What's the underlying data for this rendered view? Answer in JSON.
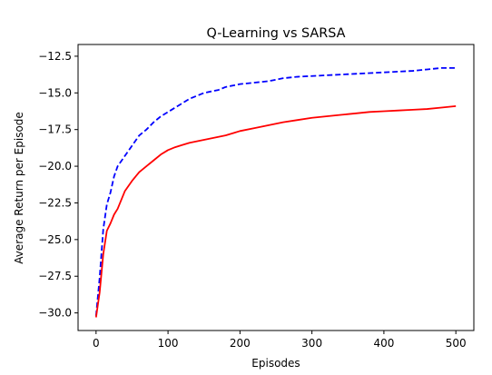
{
  "chart_data": {
    "type": "line",
    "title": "Q-Learning vs SARSA",
    "xlabel": "Episodes",
    "ylabel": "Average Return per Episode",
    "xlim": [
      -25,
      525
    ],
    "ylim": [
      -31.2,
      -11.7
    ],
    "x_ticks": [
      0,
      100,
      200,
      300,
      400,
      500
    ],
    "y_ticks": [
      -30.0,
      -27.5,
      -25.0,
      -22.5,
      -20.0,
      -17.5,
      -15.0,
      -12.5
    ],
    "x_tick_labels": [
      "0",
      "100",
      "200",
      "300",
      "400",
      "500"
    ],
    "y_tick_labels": [
      "−30.0",
      "−27.5",
      "−25.0",
      "−22.5",
      "−20.0",
      "−17.5",
      "−15.0",
      "−12.5"
    ],
    "grid": false,
    "legend": "none",
    "series": [
      {
        "color": "#0000ff",
        "style": "dashed",
        "x": [
          0,
          5,
          10,
          15,
          20,
          25,
          30,
          40,
          50,
          60,
          70,
          80,
          90,
          100,
          110,
          120,
          130,
          140,
          150,
          160,
          170,
          180,
          190,
          200,
          220,
          240,
          260,
          280,
          300,
          320,
          340,
          360,
          380,
          400,
          420,
          440,
          460,
          480,
          500
        ],
        "y": [
          -30.2,
          -27.6,
          -24.3,
          -22.6,
          -21.8,
          -20.7,
          -20.0,
          -19.3,
          -18.6,
          -17.9,
          -17.5,
          -17.0,
          -16.6,
          -16.3,
          -16.0,
          -15.7,
          -15.4,
          -15.2,
          -15.0,
          -14.9,
          -14.8,
          -14.6,
          -14.5,
          -14.4,
          -14.3,
          -14.2,
          -14.0,
          -13.9,
          -13.85,
          -13.8,
          -13.75,
          -13.7,
          -13.65,
          -13.6,
          -13.55,
          -13.5,
          -13.4,
          -13.3,
          -13.3
        ]
      },
      {
        "color": "#ff0000",
        "style": "solid",
        "x": [
          0,
          5,
          10,
          15,
          20,
          25,
          30,
          40,
          50,
          60,
          70,
          80,
          90,
          100,
          110,
          120,
          130,
          140,
          150,
          160,
          170,
          180,
          190,
          200,
          220,
          240,
          260,
          280,
          300,
          320,
          340,
          360,
          380,
          400,
          420,
          440,
          460,
          480,
          500
        ],
        "y": [
          -30.3,
          -28.6,
          -26.0,
          -24.4,
          -23.9,
          -23.3,
          -22.9,
          -21.7,
          -21.0,
          -20.4,
          -20.0,
          -19.6,
          -19.2,
          -18.9,
          -18.7,
          -18.55,
          -18.4,
          -18.3,
          -18.2,
          -18.1,
          -18.0,
          -17.9,
          -17.75,
          -17.6,
          -17.4,
          -17.2,
          -17.0,
          -16.85,
          -16.7,
          -16.6,
          -16.5,
          -16.4,
          -16.3,
          -16.25,
          -16.2,
          -16.15,
          -16.1,
          -16.0,
          -15.9
        ]
      }
    ]
  }
}
